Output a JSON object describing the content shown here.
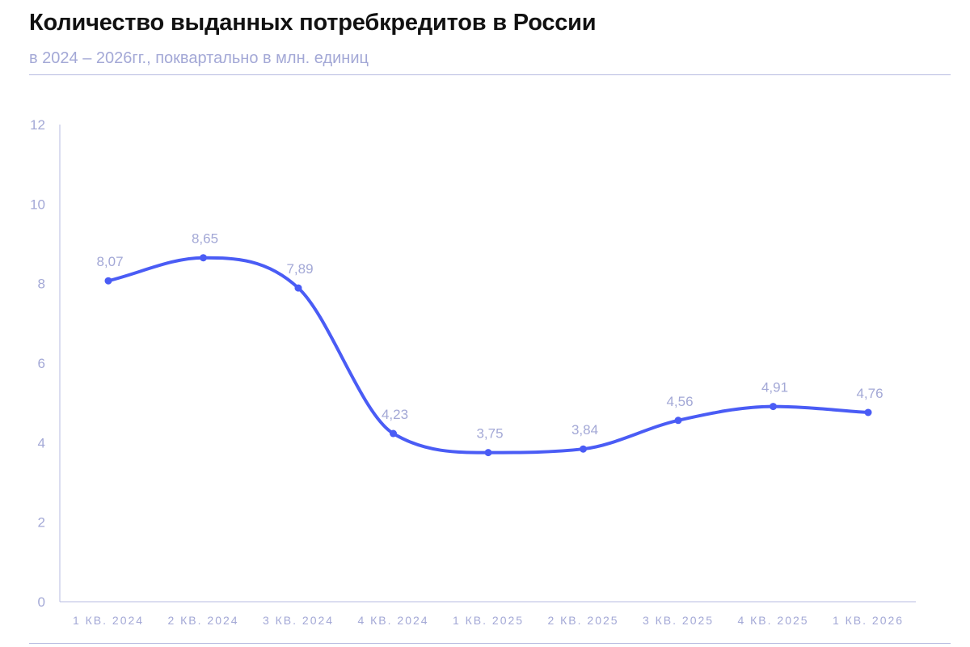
{
  "header": {
    "title": "Количество выданных потребкредитов в России",
    "subtitle": "в 2024 – 2026гг., поквартально в млн. единиц"
  },
  "colors": {
    "line": "#4a5cf5",
    "axis_text": "#a3a8d6",
    "axis_line": "#b7bbe0",
    "title": "#111111"
  },
  "chart_data": {
    "type": "line",
    "title": "Количество выданных потребкредитов в России",
    "subtitle": "в 2024 – 2026гг., поквартально в млн. единиц",
    "xlabel": "",
    "ylabel": "",
    "categories": [
      "1 КВ. 2024",
      "2 КВ. 2024",
      "3 КВ. 2024",
      "4 КВ. 2024",
      "1 КВ. 2025",
      "2 КВ. 2025",
      "3 КВ. 2025",
      "4 КВ. 2025",
      "1 КВ. 2026"
    ],
    "values": [
      8.07,
      8.65,
      7.89,
      4.23,
      3.75,
      3.84,
      4.56,
      4.91,
      4.76
    ],
    "data_labels": [
      "8,07",
      "8,65",
      "7,89",
      "4,23",
      "3,75",
      "3,84",
      "4,56",
      "4,91",
      "4,76"
    ],
    "ylim": [
      0,
      12
    ],
    "yticks": [
      0,
      2,
      4,
      6,
      8,
      10,
      12
    ],
    "grid": false,
    "legend": "none",
    "smooth": true
  }
}
